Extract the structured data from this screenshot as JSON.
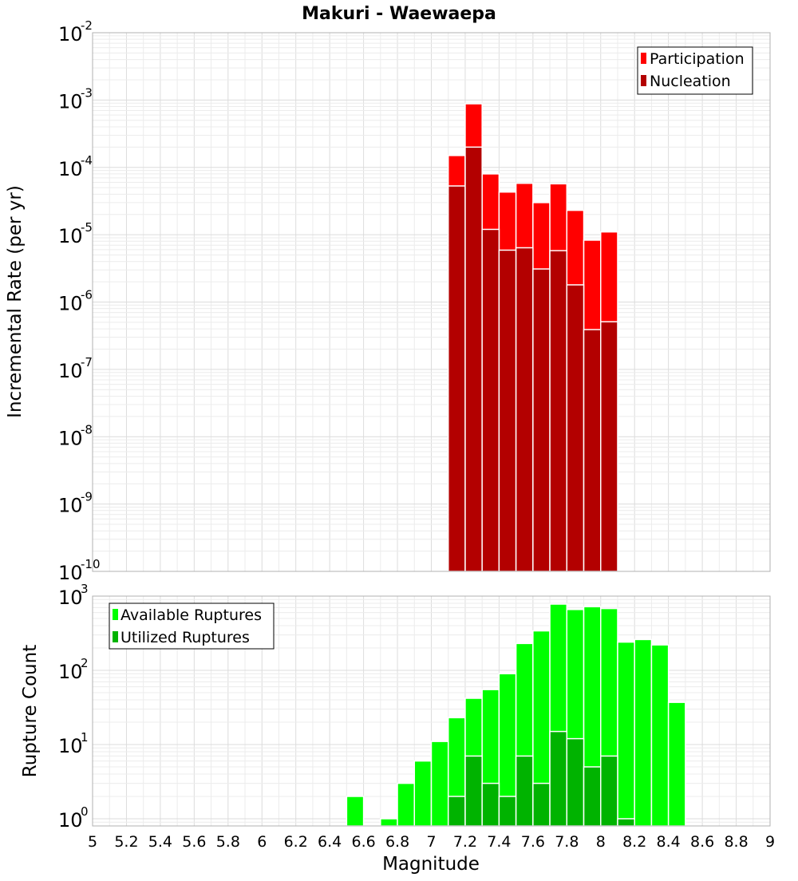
{
  "chart_data": [
    {
      "type": "bar",
      "title": "Makuri - Waewaepa",
      "xlabel": "",
      "ylabel": "Incremental Rate (per yr)",
      "yscale": "log",
      "ylim": [
        1e-10,
        0.01
      ],
      "ytick_exponents": [
        "-10",
        "-9",
        "-8",
        "-7",
        "-6",
        "-5",
        "-4",
        "-3",
        "-2"
      ],
      "xlim": [
        5,
        9
      ],
      "legend": {
        "placement": "top-right",
        "entries": [
          "Participation",
          "Nucleation"
        ]
      },
      "colors": {
        "Participation": "#ff0000",
        "Nucleation": "#b30000"
      },
      "bin_width": 0.1,
      "x": [
        7.15,
        7.25,
        7.35,
        7.45,
        7.55,
        7.65,
        7.75,
        7.85,
        7.95,
        8.05
      ],
      "series": [
        {
          "name": "Participation",
          "values": [
            0.00015,
            0.00088,
            8e-05,
            4.3e-05,
            5.8e-05,
            3e-05,
            5.7e-05,
            2.3e-05,
            8.3e-06,
            1.1e-05
          ]
        },
        {
          "name": "Nucleation",
          "values": [
            5.3e-05,
            0.0002,
            1.2e-05,
            5.9e-06,
            6.4e-06,
            3.1e-06,
            5.8e-06,
            1.8e-06,
            3.9e-07,
            5.1e-07
          ]
        }
      ]
    },
    {
      "type": "bar",
      "title": "",
      "xlabel": "Magnitude",
      "ylabel": "Rupture Count",
      "yscale": "log",
      "ylim": [
        0.8,
        1000
      ],
      "ytick_exponents": [
        "0",
        "1",
        "2",
        "3"
      ],
      "xlim": [
        5,
        9
      ],
      "xtick_labels": [
        "5",
        "5.2",
        "5.4",
        "5.6",
        "5.8",
        "6",
        "6.2",
        "6.4",
        "6.6",
        "6.8",
        "7",
        "7.2",
        "7.4",
        "7.6",
        "7.8",
        "8",
        "8.2",
        "8.4",
        "8.6",
        "8.8",
        "9"
      ],
      "legend": {
        "placement": "top-left",
        "entries": [
          "Available Ruptures",
          "Utilized Ruptures"
        ]
      },
      "colors": {
        "Available Ruptures": "#00ff00",
        "Utilized Ruptures": "#00b300"
      },
      "bin_width": 0.1,
      "x": [
        6.55,
        6.75,
        6.85,
        6.95,
        7.05,
        7.15,
        7.25,
        7.35,
        7.45,
        7.55,
        7.65,
        7.75,
        7.85,
        7.95,
        8.05,
        8.15,
        8.25,
        8.35,
        8.45
      ],
      "series": [
        {
          "name": "Available Ruptures",
          "values": [
            2,
            1,
            3,
            6,
            11,
            23,
            42,
            55,
            90,
            230,
            340,
            780,
            660,
            720,
            680,
            240,
            260,
            220,
            37
          ]
        },
        {
          "name": "Utilized Ruptures",
          "values": [
            null,
            null,
            null,
            null,
            null,
            2,
            7,
            3,
            2,
            7,
            3,
            15,
            12,
            5,
            7,
            1,
            null,
            null,
            null
          ]
        }
      ]
    }
  ]
}
